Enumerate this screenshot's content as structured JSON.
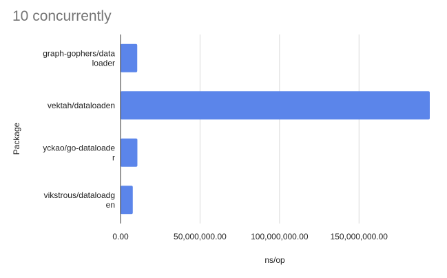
{
  "chart_data": {
    "type": "bar",
    "orientation": "horizontal",
    "title": "10 concurrently",
    "xlabel": "ns/op",
    "ylabel": "Package",
    "categories": [
      [
        "graph-gophers/data",
        "loader"
      ],
      [
        "vektah/dataloaden"
      ],
      [
        "yckao/go-dataloade",
        "r"
      ],
      [
        "vikstrous/dataloadg",
        "en"
      ]
    ],
    "values": [
      10500000,
      194500000,
      10600000,
      7700000
    ],
    "xlim": [
      0,
      194500000
    ],
    "xticks": [
      0,
      50000000,
      100000000,
      150000000
    ],
    "xtick_labels": [
      "0.00",
      "50,000,000.00",
      "100,000,000.00",
      "150,000,000.00"
    ],
    "grid": true,
    "legend": "none",
    "colors": {
      "bar": "#5b85ea",
      "grid": "#d9d9d9",
      "axis": "#333333",
      "title": "#757575"
    }
  }
}
